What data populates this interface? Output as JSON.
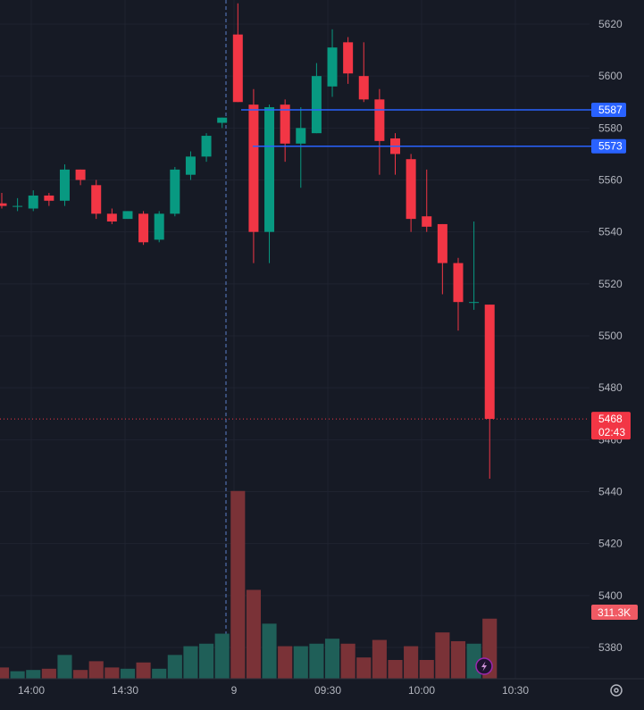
{
  "chart_data": {
    "type": "candlestick",
    "y_ticks": [
      5620,
      5600,
      5580,
      5560,
      5540,
      5520,
      5500,
      5480,
      5460,
      5440,
      5420,
      5400,
      5380
    ],
    "x_ticks": [
      "14:00",
      "14:30",
      "9",
      "09:30",
      "10:00",
      "10:30"
    ],
    "ylim": [
      5370,
      5628
    ],
    "grid": true,
    "session_break_label": "9",
    "price_lines": [
      {
        "label": "5587",
        "value": 5587,
        "color": "#2962ff"
      },
      {
        "label": "5573",
        "value": 5573,
        "color": "#2962ff"
      }
    ],
    "last_price": {
      "label": "5468",
      "value": 5468,
      "countdown": "02:43",
      "color": "#f23645"
    },
    "volume_label": "311.3K",
    "colors": {
      "up": "#089981",
      "down": "#f23645",
      "volume_up": "#1f5f58",
      "volume_down": "#7a3237"
    },
    "candles": [
      {
        "o": 5551,
        "h": 5555,
        "l": 5549,
        "c": 5550,
        "v": 0.09
      },
      {
        "o": 5550,
        "h": 5553,
        "l": 5548,
        "c": 5550,
        "v": 0.06
      },
      {
        "o": 5549,
        "h": 5556,
        "l": 5548,
        "c": 5554,
        "v": 0.07
      },
      {
        "o": 5554,
        "h": 5555,
        "l": 5550,
        "c": 5552,
        "v": 0.08
      },
      {
        "o": 5552,
        "h": 5566,
        "l": 5550,
        "c": 5564,
        "v": 0.19
      },
      {
        "o": 5564,
        "h": 5564,
        "l": 5558,
        "c": 5560,
        "v": 0.07
      },
      {
        "o": 5558,
        "h": 5560,
        "l": 5545,
        "c": 5547,
        "v": 0.14
      },
      {
        "o": 5547,
        "h": 5549,
        "l": 5543,
        "c": 5544,
        "v": 0.09
      },
      {
        "o": 5545,
        "h": 5548,
        "l": 5545,
        "c": 5548,
        "v": 0.08
      },
      {
        "o": 5547,
        "h": 5548,
        "l": 5535,
        "c": 5536,
        "v": 0.13
      },
      {
        "o": 5537,
        "h": 5548,
        "l": 5536,
        "c": 5547,
        "v": 0.08
      },
      {
        "o": 5547,
        "h": 5565,
        "l": 5546,
        "c": 5564,
        "v": 0.19
      },
      {
        "o": 5562,
        "h": 5571,
        "l": 5560,
        "c": 5569,
        "v": 0.26
      },
      {
        "o": 5569,
        "h": 5578,
        "l": 5567,
        "c": 5577,
        "v": 0.28
      },
      {
        "o": 5582,
        "h": 5584,
        "l": 5580,
        "c": 5584,
        "v": 0.36
      },
      {
        "o": 5616,
        "h": 5628,
        "l": 5590,
        "c": 5590,
        "v": 1.5
      },
      {
        "o": 5589,
        "h": 5595,
        "l": 5528,
        "c": 5540,
        "v": 0.71
      },
      {
        "o": 5540,
        "h": 5589,
        "l": 5528,
        "c": 5588,
        "v": 0.44
      },
      {
        "o": 5589,
        "h": 5591,
        "l": 5567,
        "c": 5574,
        "v": 0.26
      },
      {
        "o": 5574,
        "h": 5588,
        "l": 5557,
        "c": 5580,
        "v": 0.26
      },
      {
        "o": 5578,
        "h": 5605,
        "l": 5578,
        "c": 5600,
        "v": 0.28
      },
      {
        "o": 5596,
        "h": 5618,
        "l": 5592,
        "c": 5611,
        "v": 0.32
      },
      {
        "o": 5613,
        "h": 5615,
        "l": 5597,
        "c": 5601,
        "v": 0.28
      },
      {
        "o": 5600,
        "h": 5613,
        "l": 5590,
        "c": 5591,
        "v": 0.17
      },
      {
        "o": 5591,
        "h": 5595,
        "l": 5562,
        "c": 5575,
        "v": 0.31
      },
      {
        "o": 5576,
        "h": 5578,
        "l": 5562,
        "c": 5570,
        "v": 0.15
      },
      {
        "o": 5568,
        "h": 5570,
        "l": 5540,
        "c": 5545,
        "v": 0.26
      },
      {
        "o": 5546,
        "h": 5564,
        "l": 5540,
        "c": 5542,
        "v": 0.15
      },
      {
        "o": 5543,
        "h": 5543,
        "l": 5516,
        "c": 5528,
        "v": 0.37
      },
      {
        "o": 5528,
        "h": 5530,
        "l": 5502,
        "c": 5513,
        "v": 0.3
      },
      {
        "o": 5513,
        "h": 5544,
        "l": 5510,
        "c": 5513,
        "v": 0.28
      },
      {
        "o": 5512,
        "h": 5512,
        "l": 5445,
        "c": 5468,
        "v": 0.48
      }
    ]
  }
}
